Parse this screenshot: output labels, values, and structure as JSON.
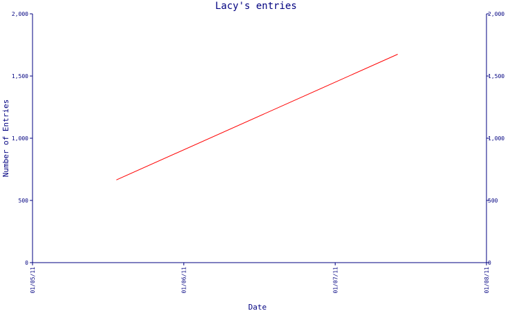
{
  "chart_data": {
    "type": "line",
    "title": "Lacy's entries",
    "xlabel": "Date",
    "ylabel": "Number of Entries",
    "x_ticks": [
      "01/05/11",
      "01/06/11",
      "01/07/11",
      "01/08/11"
    ],
    "y_ticks": [
      "0",
      "500",
      "1,000",
      "1,500",
      "2,000"
    ],
    "ylim": [
      0,
      2000
    ],
    "xlim": [
      "2011-05-01",
      "2011-08-01"
    ],
    "grid": false,
    "legend": "none",
    "series": [
      {
        "points": [
          {
            "x": "2011-05-18",
            "y": 665
          },
          {
            "x": "2011-07-14",
            "y": 1675
          }
        ]
      }
    ],
    "colors": {
      "axis": "#000080",
      "series": "#ff0000"
    }
  }
}
